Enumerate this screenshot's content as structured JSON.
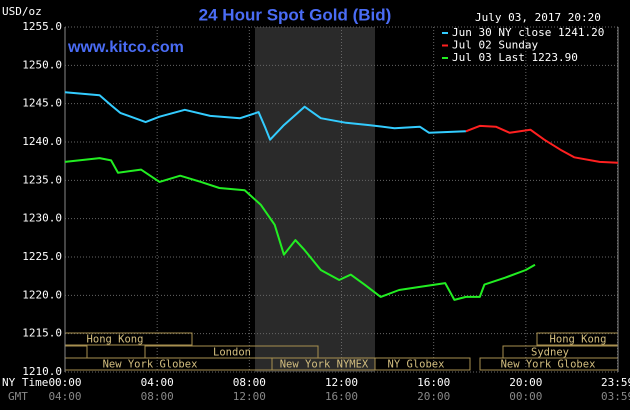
{
  "chart_data": {
    "type": "line",
    "title": "24 Hour Spot Gold (Bid)",
    "subtitle": "www.kitco.com",
    "date_label": "July 03, 2017 20:20",
    "y_label": "USD/oz",
    "x_label": "NY Time",
    "x2_label": "GMT",
    "xlim": [
      0,
      24
    ],
    "xticks": [
      {
        "value": 0,
        "label": "00:00"
      },
      {
        "value": 4,
        "label": "04:00"
      },
      {
        "value": 8,
        "label": "08:00"
      },
      {
        "value": 12,
        "label": "12:00"
      },
      {
        "value": 16,
        "label": "16:00"
      },
      {
        "value": 20,
        "label": "20:00"
      },
      {
        "value": 23.98,
        "label": "23:59"
      }
    ],
    "x2ticks": [
      {
        "value": 0,
        "label": "04:00"
      },
      {
        "value": 4,
        "label": "08:00"
      },
      {
        "value": 8,
        "label": "12:00"
      },
      {
        "value": 12,
        "label": "16:00"
      },
      {
        "value": 16,
        "label": "20:00"
      },
      {
        "value": 20,
        "label": "00:00"
      },
      {
        "value": 23.98,
        "label": "03:59"
      }
    ],
    "ylim": [
      1210,
      1255
    ],
    "yticks": [
      {
        "value": 1210,
        "label": "1210.0"
      },
      {
        "value": 1215,
        "label": "1215.0"
      },
      {
        "value": 1220,
        "label": "1220.0"
      },
      {
        "value": 1225,
        "label": "1225.0"
      },
      {
        "value": 1230,
        "label": "1230.0"
      },
      {
        "value": 1235,
        "label": "1235.0"
      },
      {
        "value": 1240,
        "label": "1240.0"
      },
      {
        "value": 1245,
        "label": "1245.0"
      },
      {
        "value": 1250,
        "label": "1250.0"
      },
      {
        "value": 1255,
        "label": "1255.0"
      }
    ],
    "grid": true,
    "legend": "top-right",
    "series": [
      {
        "name": "Jun 30 NY close 1241.20",
        "color": "#33ccff",
        "x": [
          0,
          1.5,
          2,
          2.4,
          3.5,
          4.1,
          5.2,
          6.3,
          7.6,
          8.4,
          8.7,
          8.9,
          9.5,
          10.4,
          11.1,
          12.2,
          13.2,
          14.3,
          15.4,
          15.8,
          17.4
        ],
        "values": [
          1246.5,
          1246.1,
          1244.8,
          1243.8,
          1242.6,
          1243.3,
          1244.2,
          1243.4,
          1243.1,
          1243.9,
          1241.8,
          1240.3,
          1242.2,
          1244.6,
          1243.1,
          1242.5,
          1242.2,
          1241.8,
          1242.0,
          1241.2,
          1241.4
        ]
      },
      {
        "name": "Jul 02 Sunday",
        "color": "#ff2020",
        "x": [
          17.4,
          18.0,
          18.7,
          19.3,
          20.2,
          20.8,
          21.5,
          22.1,
          23.2,
          24
        ],
        "values": [
          1241.4,
          1242.1,
          1242.0,
          1241.2,
          1241.6,
          1240.3,
          1239.0,
          1238.0,
          1237.4,
          1237.3
        ]
      },
      {
        "name": "Jul 03 Last 1223.90",
        "color": "#22ee22",
        "x": [
          0,
          1.5,
          2,
          2.3,
          3.3,
          4.1,
          5.0,
          5.9,
          6.7,
          7.8,
          8.5,
          9.1,
          9.5,
          10,
          10.4,
          11.1,
          11.9,
          12.4,
          13,
          13.7,
          14.5,
          15.4,
          16.5,
          16.9,
          17.4,
          18.0,
          18.2,
          19.1,
          20.0,
          20.4
        ],
        "values": [
          1237.4,
          1237.9,
          1237.6,
          1236.0,
          1236.4,
          1234.8,
          1235.6,
          1234.8,
          1234.0,
          1233.7,
          1231.8,
          1229.2,
          1225.3,
          1227.2,
          1225.9,
          1223.3,
          1222.0,
          1222.7,
          1221.4,
          1219.8,
          1220.7,
          1221.1,
          1221.6,
          1219.4,
          1219.8,
          1219.8,
          1221.4,
          1222.3,
          1223.3,
          1224.0
        ]
      }
    ],
    "sessions": [
      "Hong Kong",
      "Hong Kong",
      "London",
      "Sydney",
      "New York Globex",
      "New York NYMEX",
      "NY Globex",
      "New York Globex"
    ]
  }
}
